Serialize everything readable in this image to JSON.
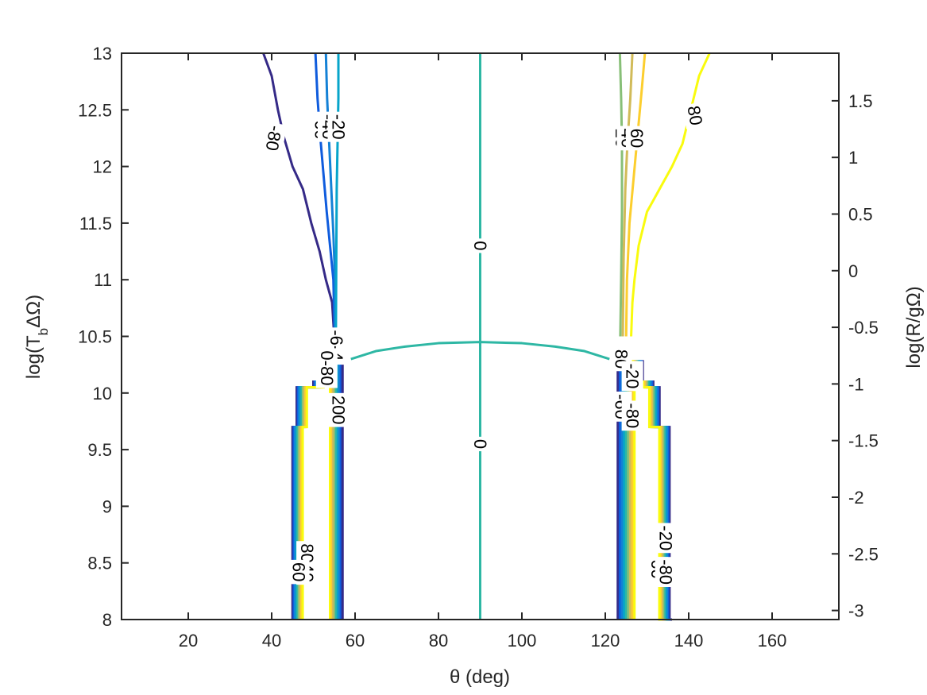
{
  "chart_data": {
    "type": "contour",
    "xlabel": "θ (deg)",
    "ylabel": "log(T_bΔΩ)",
    "ylabel_right": "log(R/gΩ)",
    "xlim": [
      4,
      176
    ],
    "ylim": [
      8,
      13
    ],
    "ylim_right": [
      -3.08,
      1.92
    ],
    "xticks": [
      "20",
      "40",
      "60",
      "80",
      "100",
      "120",
      "140",
      "160"
    ],
    "xtick_values": [
      20,
      40,
      60,
      80,
      100,
      120,
      140,
      160
    ],
    "yticks": [
      "8",
      "8.5",
      "9",
      "9.5",
      "10",
      "10.5",
      "11",
      "11.5",
      "12",
      "12.5",
      "13"
    ],
    "ytick_values": [
      8,
      8.5,
      9,
      9.5,
      10,
      10.5,
      11,
      11.5,
      12,
      12.5,
      13
    ],
    "yticks_right": [
      "-3",
      "-2.5",
      "-2",
      "-1.5",
      "-1",
      "-0.5",
      "0",
      "0.5",
      "1",
      "1.5"
    ],
    "ytick_right_values": [
      -3,
      -2.5,
      -2,
      -1.5,
      -1,
      -0.5,
      0,
      0.5,
      1,
      1.5
    ],
    "colormap": "parula",
    "contours": [
      {
        "level": -80,
        "color": "#352a87",
        "label": "-80",
        "x": [
          38,
          40,
          41.5,
          43,
          45,
          47.5,
          49.5,
          51.5,
          53,
          54.5,
          55
        ],
        "y": [
          13,
          12.8,
          12.5,
          12.25,
          12,
          11.8,
          11.5,
          11.25,
          11,
          10.8,
          10.5
        ]
      },
      {
        "level": -60,
        "color": "#0f5cdd",
        "label": "-60",
        "x": [
          50.5,
          51,
          51.8,
          52.5,
          53.2,
          54,
          54.8,
          55.1
        ],
        "y": [
          13,
          12.6,
          12.2,
          11.9,
          11.6,
          11.3,
          11,
          10.5
        ]
      },
      {
        "level": -40,
        "color": "#1481d6",
        "label": "-40",
        "x": [
          53,
          53.3,
          53.8,
          54.3,
          54.8,
          55.2,
          55.3
        ],
        "y": [
          13,
          12.6,
          12.2,
          11.8,
          11.4,
          11,
          10.5
        ]
      },
      {
        "level": -20,
        "color": "#06a4ca",
        "label": "-20",
        "x": [
          56,
          56,
          55.8,
          55.6,
          55.5,
          55.4
        ],
        "y": [
          13,
          12.6,
          12.2,
          11.8,
          11.2,
          10.5
        ]
      },
      {
        "level": 0,
        "color": "#2eb7a4",
        "label": "0",
        "x": [
          90,
          90
        ],
        "y": [
          13,
          8
        ]
      },
      {
        "level": 0,
        "color": "#2eb7a4",
        "label": "",
        "x": [
          59,
          65,
          72,
          80,
          90,
          100,
          108,
          115,
          121
        ],
        "y": [
          10.3,
          10.37,
          10.41,
          10.44,
          10.45,
          10.44,
          10.41,
          10.37,
          10.3
        ]
      },
      {
        "level": 20,
        "color": "#87bf77",
        "label": "20",
        "x": [
          123.5,
          123.8,
          124,
          124,
          123.8,
          123.6
        ],
        "y": [
          13,
          12.6,
          12.2,
          11.6,
          11,
          10.5
        ]
      },
      {
        "level": 40,
        "color": "#d1bb59",
        "label": "40",
        "x": [
          126.5,
          126,
          125.3,
          124.8,
          124.4,
          124.2
        ],
        "y": [
          13,
          12.6,
          12.2,
          11.8,
          11.2,
          10.5
        ]
      },
      {
        "level": 60,
        "color": "#fcce2e",
        "label": "60",
        "x": [
          129.5,
          128.8,
          127.8,
          126.8,
          125.8,
          125.2,
          125
        ],
        "y": [
          13,
          12.7,
          12.3,
          11.9,
          11.5,
          11.0,
          10.5
        ]
      },
      {
        "level": 80,
        "color": "#f9fb0e",
        "label": "80",
        "x": [
          145,
          142.5,
          140.5,
          138.5,
          136,
          133,
          130,
          128,
          127,
          126.5,
          126.2
        ],
        "y": [
          13,
          12.8,
          12.5,
          12.2,
          12,
          11.8,
          11.6,
          11.3,
          11,
          10.8,
          10.5
        ]
      }
    ],
    "band_colors": [
      "#352a87",
      "#0f5cdd",
      "#1481d6",
      "#06a4ca",
      "#2eb7a4",
      "#87bf77",
      "#d1bb59",
      "#fcce2e",
      "#f9fb0e"
    ],
    "left_band_outline": {
      "x": [
        45,
        45,
        46,
        46,
        50,
        50,
        52,
        52,
        53
      ],
      "y": [
        8,
        9.7,
        9.7,
        10.05,
        10.05,
        10.1,
        10.1,
        10.28,
        10.28
      ]
    },
    "right_band_outline": {
      "x": [
        136,
        135.4,
        135.4,
        133,
        133,
        131.5,
        131.5,
        129,
        129,
        128
      ],
      "y": [
        8,
        8,
        9.7,
        9.7,
        10.05,
        10.05,
        10.1,
        10.1,
        10.28,
        10.28
      ]
    },
    "inner_left_band_x": [
      54,
      57
    ],
    "inner_right_band_x": [
      123,
      127
    ],
    "clutter_labels": [
      {
        "text": "-6-4",
        "x": 55.5,
        "y": 10.42,
        "rot": 90
      },
      {
        "text": "0-80",
        "x": 53.2,
        "y": 10.22,
        "rot": 90
      },
      {
        "text": "200",
        "x": 56,
        "y": 9.85,
        "rot": 90
      },
      {
        "text": "8040",
        "x": 48.5,
        "y": 8.5,
        "rot": 90
      },
      {
        "text": "60",
        "x": 46.5,
        "y": 8.42,
        "rot": 90
      },
      {
        "text": "80",
        "x": 123.8,
        "y": 10.3,
        "rot": 90
      },
      {
        "text": "-20",
        "x": 126.5,
        "y": 10.15,
        "rot": 90
      },
      {
        "text": "-60",
        "x": 123.8,
        "y": 9.88,
        "rot": 90
      },
      {
        "text": "-80",
        "x": 126.5,
        "y": 9.8,
        "rot": 90
      },
      {
        "text": "-20",
        "x": 134.5,
        "y": 8.72,
        "rot": 90
      },
      {
        "text": "60-",
        "x": 132.5,
        "y": 8.42,
        "rot": 90
      },
      {
        "text": "-80",
        "x": 134.5,
        "y": 8.42,
        "rot": 90
      }
    ]
  }
}
